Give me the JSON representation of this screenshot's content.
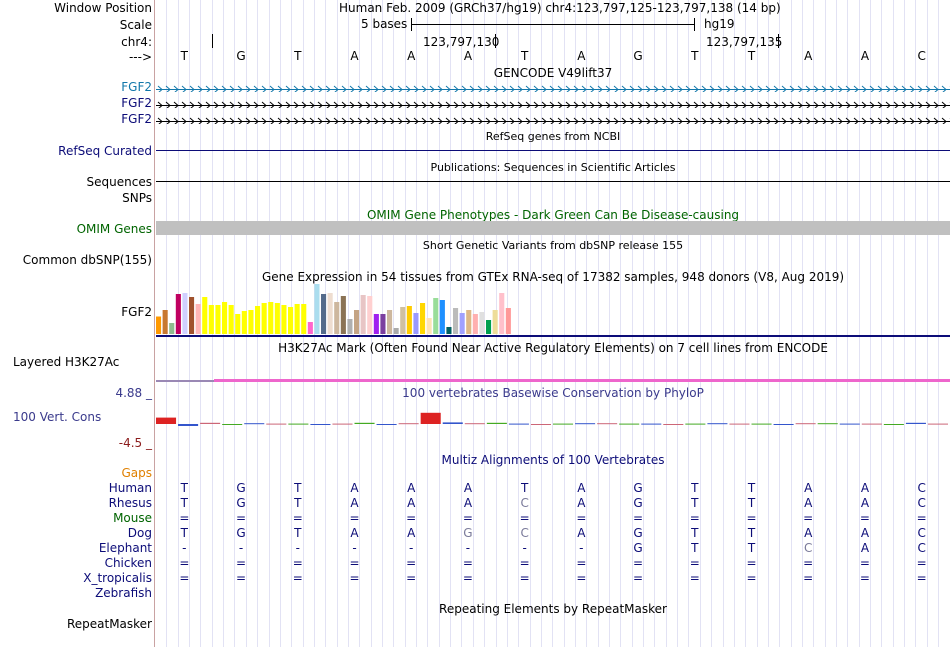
{
  "labels": {
    "window_position": "Window Position",
    "scale": "Scale",
    "chrom": "chr4:",
    "strand": "--->",
    "fgf2_1": "FGF2",
    "fgf2_2": "FGF2",
    "fgf2_3": "FGF2",
    "refseq": "RefSeq Curated",
    "sequences": "Sequences",
    "snps": "SNPs",
    "omim": "OMIM Genes",
    "dbsnp": "Common dbSNP(155)",
    "gtex_gene": "FGF2",
    "h3k27ac": "Layered H3K27Ac",
    "phylop_max": "4.88 _",
    "phylop_name": "100 Vert. Cons",
    "phylop_min": "-4.5 _",
    "gaps": "Gaps",
    "repeatmasker": "RepeatMasker"
  },
  "header": {
    "assembly_position": "Human Feb. 2009 (GRCh37/hg19)   chr4:123,797,125-123,797,138 (14 bp)",
    "scale_text": "5 bases",
    "db": "hg19",
    "pos1": "123,797,130",
    "pos2": "123,797,135"
  },
  "tracks": {
    "gencode": "GENCODE V49lift37",
    "refseq_title": "RefSeq genes from NCBI",
    "pubs": "Publications: Sequences in Scientific Articles",
    "omim_title": "OMIM Gene Phenotypes - Dark Green Can Be Disease-causing",
    "dbsnp_title": "Short Genetic Variants from dbSNP release 155",
    "gtex_title": "Gene Expression in 54 tissues from GTEx RNA-seq of 17382 samples, 948 donors (V8, Aug 2019)",
    "h3k27ac_title": "H3K27Ac Mark (Often Found Near Active Regulatory Elements) on 7 cell lines from ENCODE",
    "phylop_title": "100 vertebrates Basewise Conservation by PhyloP",
    "multiz_title": "Multiz Alignments of 100 Vertebrates",
    "repeat_title": "Repeating Elements by RepeatMasker"
  },
  "dna": [
    "T",
    "G",
    "T",
    "A",
    "A",
    "A",
    "T",
    "A",
    "G",
    "T",
    "T",
    "A",
    "A",
    "C"
  ],
  "alignment": [
    {
      "species": "Human",
      "bases": [
        "T",
        "G",
        "T",
        "A",
        "A",
        "A",
        "T",
        "A",
        "G",
        "T",
        "T",
        "A",
        "A",
        "C"
      ]
    },
    {
      "species": "Rhesus",
      "bases": [
        "T",
        "G",
        "T",
        "A",
        "A",
        "A",
        "C",
        "A",
        "G",
        "T",
        "T",
        "A",
        "A",
        "C"
      ]
    },
    {
      "species": "Mouse",
      "bases": [
        "=",
        "=",
        "=",
        "=",
        "=",
        "=",
        "=",
        "=",
        "=",
        "=",
        "=",
        "=",
        "=",
        "="
      ]
    },
    {
      "species": "Dog",
      "bases": [
        "T",
        "G",
        "T",
        "A",
        "A",
        "G",
        "C",
        "A",
        "G",
        "T",
        "T",
        "A",
        "A",
        "C"
      ]
    },
    {
      "species": "Elephant",
      "bases": [
        "-",
        "-",
        "-",
        "-",
        "-",
        "-",
        "-",
        "-",
        "G",
        "T",
        "T",
        "C",
        "A",
        "C"
      ]
    },
    {
      "species": "Chicken",
      "bases": [
        "=",
        "=",
        "=",
        "=",
        "=",
        "=",
        "=",
        "=",
        "=",
        "=",
        "=",
        "=",
        "=",
        "="
      ]
    },
    {
      "species": "X_tropicalis",
      "bases": [
        "=",
        "=",
        "=",
        "=",
        "=",
        "=",
        "=",
        "=",
        "=",
        "=",
        "=",
        "=",
        "=",
        "="
      ]
    },
    {
      "species": "Zebrafish",
      "bases": []
    }
  ],
  "gtex_values": [
    35,
    48,
    22,
    80,
    82,
    74,
    60,
    74,
    58,
    58,
    64,
    58,
    40,
    46,
    48,
    56,
    62,
    64,
    62,
    58,
    54,
    60,
    60,
    24,
    100,
    80,
    82,
    64,
    76,
    30,
    48,
    78,
    76,
    40,
    40,
    48,
    12,
    54,
    56,
    42,
    62,
    32,
    72,
    68,
    14,
    52,
    42,
    48,
    40,
    44,
    28,
    48,
    82,
    52
  ],
  "gtex_colors": [
    "#ff9900",
    "#c87830",
    "#8fbc8f",
    "#c00060",
    "#d0d0ff",
    "#a0522d",
    "#ffb6b6",
    "#ffff00",
    "#ffff00",
    "#ffff00",
    "#ffff00",
    "#ffff00",
    "#ffff00",
    "#ffff00",
    "#ffff00",
    "#ffff00",
    "#ffff00",
    "#ffff00",
    "#ffff00",
    "#ffff00",
    "#ffff00",
    "#ffff00",
    "#ffff00",
    "#ff66cc",
    "#aaddee",
    "#556b8b",
    "#eeddd0",
    "#cdb79e",
    "#8b7355",
    "#b0b0b0",
    "#c4a484",
    "#e8c5c5",
    "#ffd0d0",
    "#a020f0",
    "#7b3fa0",
    "#cdb79e",
    "#aaaaaa",
    "#d0c0a0",
    "#ffcc00",
    "#9999ff",
    "#ffd700",
    "#ffe4b5",
    "#99dd99",
    "#1e90ff",
    "#006060",
    "#bbbbbb",
    "#a0a0ff",
    "#deb887",
    "#ffb0b0",
    "#e0e0e0",
    "#00a050",
    "#eedd99",
    "#ffc0cb",
    "#ff9999"
  ],
  "phylop_bars": [
    1.6,
    -0.5,
    0.3,
    -0.2,
    0.2,
    0.1,
    0.1,
    -0.2,
    0.1,
    0.3,
    -0.1,
    0.2,
    2.8,
    0.4,
    0.2,
    0.3,
    0.1,
    -0.1,
    0.1,
    0.2,
    0.2,
    0.1,
    0.1,
    -0.1,
    0.1,
    0.2,
    0.1,
    0.1,
    -0.1,
    0.2,
    0.2,
    0.1,
    0.1,
    -0.1,
    0.3,
    0.1
  ],
  "colors": {
    "gencode": "#1177aa",
    "gene": "#0c0c78",
    "omim": "#006400",
    "phylop": "#3a3a8c",
    "phylop_min": "#8b1c1c",
    "gaps": "#e08000",
    "species": "#0c0c78",
    "mouse": "#006400"
  }
}
